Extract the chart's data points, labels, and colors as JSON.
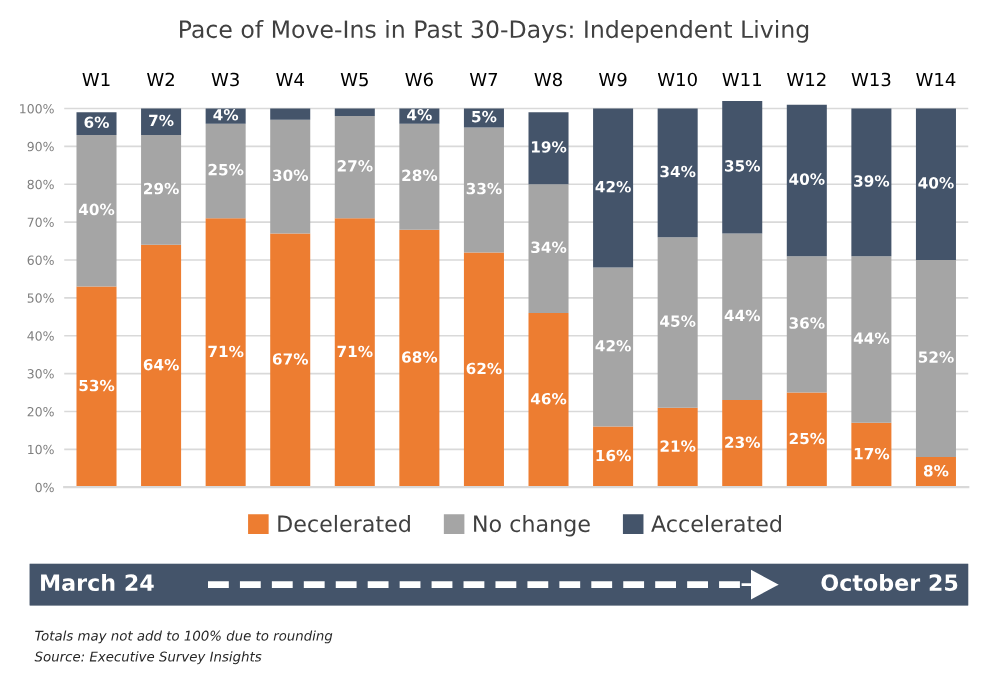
{
  "chart_data": {
    "type": "bar",
    "title": "Pace of Move-Ins in Past 30-Days: Independent Living",
    "categories": [
      "W1",
      "W2",
      "W3",
      "W4",
      "W5",
      "W6",
      "W7",
      "W8",
      "W9",
      "W10",
      "W11",
      "W12",
      "W13",
      "W14"
    ],
    "stacked": true,
    "series": [
      {
        "name": "Decelerated",
        "color": "#ed7d31",
        "values": [
          53,
          64,
          71,
          67,
          71,
          68,
          62,
          46,
          16,
          21,
          23,
          25,
          17,
          8
        ],
        "value_labels": [
          "53%",
          "64%",
          "71%",
          "67%",
          "71%",
          "68%",
          "62%",
          "46%",
          "16%",
          "21%",
          "23%",
          "25%",
          "17%",
          "8%"
        ]
      },
      {
        "name": "No change",
        "color": "#a5a5a5",
        "values": [
          40,
          29,
          25,
          30,
          27,
          28,
          33,
          34,
          42,
          45,
          44,
          36,
          44,
          52
        ],
        "value_labels": [
          "40%",
          "29%",
          "25%",
          "30%",
          "27%",
          "28%",
          "33%",
          "34%",
          "42%",
          "45%",
          "44%",
          "36%",
          "44%",
          "52%"
        ]
      },
      {
        "name": "Accelerated",
        "color": "#44546a",
        "values": [
          6,
          7,
          4,
          3,
          2,
          4,
          5,
          19,
          42,
          34,
          35,
          40,
          39,
          40
        ],
        "value_labels": [
          "6%",
          "7%",
          "4%",
          null,
          null,
          "4%",
          "5%",
          "19%",
          "42%",
          "34%",
          "35%",
          "40%",
          "39%",
          "40%"
        ]
      }
    ],
    "ylim": [
      0,
      102
    ],
    "yticks": [
      {
        "value": 0,
        "label": "0%"
      },
      {
        "value": 10,
        "label": "10%"
      },
      {
        "value": 20,
        "label": "20%"
      },
      {
        "value": 30,
        "label": "30%"
      },
      {
        "value": 40,
        "label": "40%"
      },
      {
        "value": 50,
        "label": "50%"
      },
      {
        "value": 60,
        "label": "60%"
      },
      {
        "value": 70,
        "label": "70%"
      },
      {
        "value": 80,
        "label": "80%"
      },
      {
        "value": 90,
        "label": "90%"
      },
      {
        "value": 100,
        "label": "100%"
      }
    ],
    "grid": "y",
    "legend": "bottom",
    "annotations": [
      "March 24",
      "October 25",
      "Totals may not add to 100% due to rounding",
      "Source: Executive Survey Insights"
    ]
  }
}
